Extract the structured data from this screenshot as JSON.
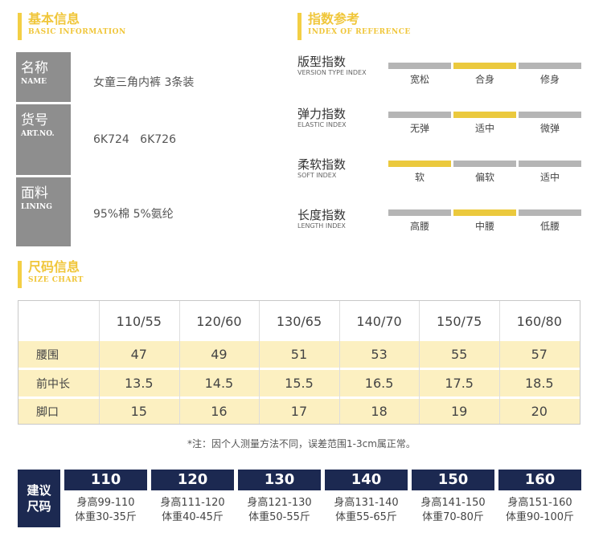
{
  "basic": {
    "title_cn": "基本信息",
    "title_en": "BASIC INFORMATION",
    "rows": [
      {
        "label_cn": "名称",
        "label_en": "NAME",
        "value": "女童三角内裤 3条装"
      },
      {
        "label_cn": "货号",
        "label_en": "ART.NO.",
        "value": "6K724   6K726"
      },
      {
        "label_cn": "面料",
        "label_en": "LINING",
        "value": "95%棉 5%氨纶"
      }
    ]
  },
  "index": {
    "title_cn": "指数参考",
    "title_en": "INDEX OF REFERENCE",
    "items": [
      {
        "name_cn": "版型指数",
        "name_en": "VERSION TYPE INDEX",
        "options": [
          "宽松",
          "合身",
          "修身"
        ],
        "selected": 1
      },
      {
        "name_cn": "弹力指数",
        "name_en": "ELASTIC INDEX",
        "options": [
          "无弹",
          "适中",
          "微弹"
        ],
        "selected": 1
      },
      {
        "name_cn": "柔软指数",
        "name_en": "SOFT INDEX",
        "options": [
          "软",
          "偏软",
          "适中"
        ],
        "selected": 0
      },
      {
        "name_cn": "长度指数",
        "name_en": "LENGTH INDEX",
        "options": [
          "高腰",
          "中腰",
          "低腰"
        ],
        "selected": 1
      }
    ]
  },
  "size_chart": {
    "title_cn": "尺码信息",
    "title_en": "SIZE CHART",
    "columns": [
      "110/55",
      "120/60",
      "130/65",
      "140/70",
      "150/75",
      "160/80"
    ],
    "rows": [
      {
        "label": "腰围",
        "values": [
          "47",
          "49",
          "51",
          "53",
          "55",
          "57"
        ]
      },
      {
        "label": "前中长",
        "values": [
          "13.5",
          "14.5",
          "15.5",
          "16.5",
          "17.5",
          "18.5"
        ]
      },
      {
        "label": "脚口",
        "values": [
          "15",
          "16",
          "17",
          "18",
          "19",
          "20"
        ]
      }
    ],
    "note": "*注：因个人测量方法不同，误差范围1-3cm属正常。"
  },
  "recommend": {
    "label_line1": "建议",
    "label_line2": "尺码",
    "sizes": [
      {
        "size": "110",
        "height": "身高99-110",
        "weight": "体重30-35斤"
      },
      {
        "size": "120",
        "height": "身高111-120",
        "weight": "体重40-45斤"
      },
      {
        "size": "130",
        "height": "身高121-130",
        "weight": "体重50-55斤"
      },
      {
        "size": "140",
        "height": "身高131-140",
        "weight": "体重55-65斤"
      },
      {
        "size": "150",
        "height": "身高141-150",
        "weight": "体重70-80斤"
      },
      {
        "size": "160",
        "height": "身高151-160",
        "weight": "体重90-100斤"
      }
    ]
  },
  "colors": {
    "accent": "#f0c63a",
    "label_gray": "#8e8e8e",
    "navy": "#1c2951",
    "row_yellow": "#fcf0c1",
    "bar_gray": "#b5b5b5",
    "bar_on": "#ebc93d"
  }
}
